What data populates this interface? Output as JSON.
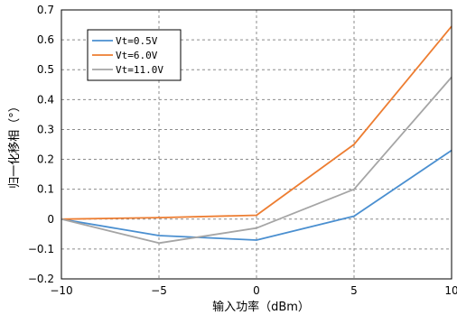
{
  "chart_data": {
    "type": "line",
    "title": "",
    "xlabel": "输入功率（dBm）",
    "ylabel": "归一化移相（°）",
    "xlim": [
      -10,
      10
    ],
    "ylim": [
      -0.2,
      0.7
    ],
    "x_ticks": [
      "−10",
      "−5",
      "0",
      "5",
      "10"
    ],
    "y_ticks": [
      "−0.2",
      "−0.1",
      "0",
      "0.1",
      "0.2",
      "0.3",
      "0.4",
      "0.5",
      "0.6",
      "0.7"
    ],
    "grid": true,
    "legend_position": "top-left",
    "x": [
      -10,
      -5,
      0,
      5,
      10
    ],
    "series": [
      {
        "name": "Vt=0.5V",
        "color": "#4a8fd0",
        "values": [
          0,
          -0.055,
          -0.07,
          0.01,
          0.23
        ]
      },
      {
        "name": "Vt=6.0V",
        "color": "#ed7d31",
        "values": [
          0,
          0.005,
          0.013,
          0.25,
          0.645
        ]
      },
      {
        "name": "Vt=11.0V",
        "color": "#a5a5a5",
        "values": [
          0,
          -0.08,
          -0.03,
          0.1,
          0.475
        ]
      }
    ]
  }
}
